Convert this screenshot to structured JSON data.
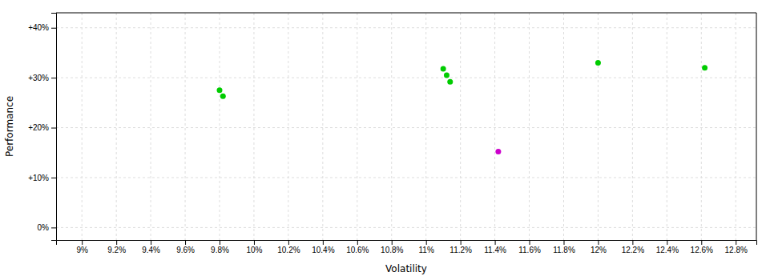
{
  "chart_data": {
    "type": "scatter",
    "xlabel": "Volatility",
    "ylabel": "Performance",
    "series": [
      {
        "color": "#00cc00",
        "x": [
          9.8,
          9.82,
          11.1,
          11.12,
          11.14,
          12.0,
          12.62
        ],
        "values": [
          27.5,
          26.3,
          31.8,
          30.5,
          29.2,
          33.0,
          32.0
        ]
      },
      {
        "color": "#cc00cc",
        "x": [
          11.42
        ],
        "values": [
          15.2
        ]
      }
    ],
    "xlim": [
      8.85,
      12.92
    ],
    "ylim": [
      -2.5,
      43
    ],
    "xticks": [
      {
        "value": 9.0,
        "label": "9%"
      },
      {
        "value": 9.2,
        "label": "9.2%"
      },
      {
        "value": 9.4,
        "label": "9.4%"
      },
      {
        "value": 9.6,
        "label": "9.6%"
      },
      {
        "value": 9.8,
        "label": "9.8%"
      },
      {
        "value": 10.0,
        "label": "10%"
      },
      {
        "value": 10.2,
        "label": "10.2%"
      },
      {
        "value": 10.4,
        "label": "10.4%"
      },
      {
        "value": 10.6,
        "label": "10.6%"
      },
      {
        "value": 10.8,
        "label": "10.8%"
      },
      {
        "value": 11.0,
        "label": "11%"
      },
      {
        "value": 11.2,
        "label": "11.2%"
      },
      {
        "value": 11.4,
        "label": "11.4%"
      },
      {
        "value": 11.6,
        "label": "11.6%"
      },
      {
        "value": 11.8,
        "label": "11.8%"
      },
      {
        "value": 12.0,
        "label": "12%"
      },
      {
        "value": 12.2,
        "label": "12.2%"
      },
      {
        "value": 12.4,
        "label": "12.4%"
      },
      {
        "value": 12.6,
        "label": "12.6%"
      },
      {
        "value": 12.8,
        "label": "12.8%"
      }
    ],
    "yticks": [
      {
        "value": 0,
        "label": "0%"
      },
      {
        "value": 10,
        "label": "+10%"
      },
      {
        "value": 20,
        "label": "+20%"
      },
      {
        "value": 30,
        "label": "+30%"
      },
      {
        "value": 40,
        "label": "+40%"
      }
    ],
    "grid": true
  }
}
